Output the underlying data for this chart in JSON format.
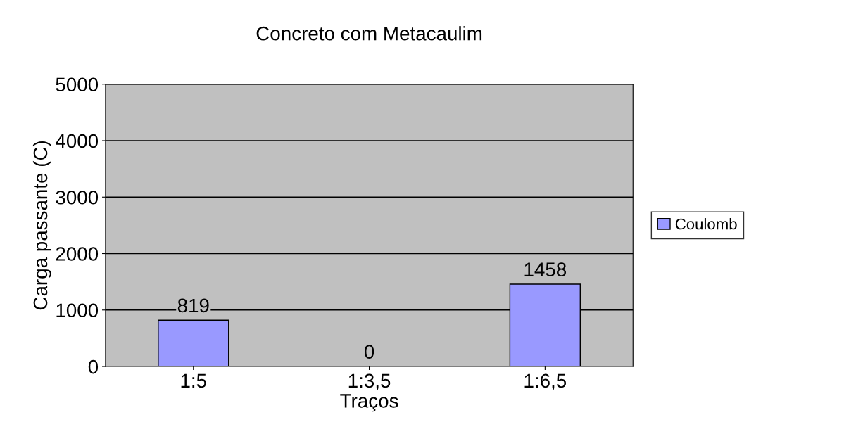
{
  "chart_data": {
    "type": "bar",
    "title": "Concreto com Metacaulim",
    "xlabel": "Traços",
    "ylabel": "Carga passante (C)",
    "categories": [
      "1:5",
      "1:3,5",
      "1:6,5"
    ],
    "series": [
      {
        "name": "Coulomb",
        "color": "#9999ff",
        "values": [
          819,
          0,
          1458
        ]
      }
    ],
    "ylim": [
      0,
      5000
    ],
    "yticks": [
      0,
      1000,
      2000,
      3000,
      4000,
      5000
    ],
    "grid": "y",
    "legend": "right",
    "data_labels": true
  }
}
